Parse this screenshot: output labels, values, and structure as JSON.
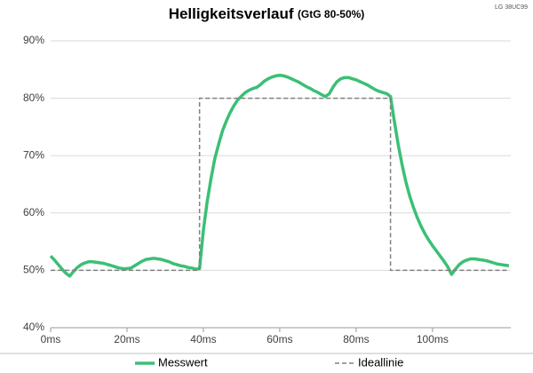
{
  "chart_data": {
    "type": "line",
    "title": "Helligkeitsverlauf",
    "subtitle": "(GtG 80-50%)",
    "annotation": "LG 38UC99",
    "xlim": [
      0,
      120.5
    ],
    "xticks": [
      {
        "value": 0,
        "label": "0ms"
      },
      {
        "value": 20,
        "label": "20ms"
      },
      {
        "value": 40,
        "label": "40ms"
      },
      {
        "value": 60,
        "label": "60ms"
      },
      {
        "value": 80,
        "label": "80ms"
      },
      {
        "value": 100,
        "label": "100ms"
      }
    ],
    "ylim": [
      40,
      90
    ],
    "yticks": [
      {
        "value": 40,
        "label": "40%"
      },
      {
        "value": 50,
        "label": "50%"
      },
      {
        "value": 60,
        "label": "60%"
      },
      {
        "value": 70,
        "label": "70%"
      },
      {
        "value": 80,
        "label": "80%"
      },
      {
        "value": 90,
        "label": "90%"
      }
    ],
    "grid": true,
    "legend": "bottom",
    "series": [
      {
        "name": "Messwert",
        "color": "#3cbf76",
        "dash": false,
        "x": [
          0,
          1,
          2,
          3,
          4,
          5,
          6,
          7,
          8,
          9,
          10,
          11,
          12,
          13,
          14,
          15,
          16,
          17,
          18,
          19,
          20,
          21,
          22,
          23,
          24,
          25,
          26,
          27,
          28,
          29,
          30,
          31,
          32,
          33,
          34,
          35,
          36,
          37,
          38,
          39,
          40,
          41,
          42,
          43,
          44,
          45,
          46,
          47,
          48,
          49,
          50,
          51,
          52,
          53,
          54,
          55,
          56,
          57,
          58,
          59,
          60,
          61,
          62,
          63,
          64,
          65,
          66,
          67,
          68,
          69,
          70,
          71,
          72,
          73,
          74,
          75,
          76,
          77,
          78,
          79,
          80,
          81,
          82,
          83,
          84,
          85,
          86,
          87,
          88,
          89,
          90,
          91,
          92,
          93,
          94,
          95,
          96,
          97,
          98,
          99,
          100,
          101,
          102,
          103,
          104,
          105,
          106,
          107,
          108,
          109,
          110,
          111,
          112,
          113,
          114,
          115,
          116,
          117,
          118,
          119,
          120
        ],
        "values": [
          52.5,
          51.8,
          51,
          50.2,
          49.5,
          49,
          49.8,
          50.5,
          51,
          51.3,
          51.5,
          51.5,
          51.4,
          51.3,
          51.2,
          51,
          50.8,
          50.6,
          50.4,
          50.3,
          50.3,
          50.4,
          50.8,
          51.2,
          51.6,
          51.9,
          52,
          52.1,
          52,
          51.9,
          51.7,
          51.5,
          51.2,
          51,
          50.8,
          50.7,
          50.5,
          50.4,
          50.2,
          50.3,
          57,
          62,
          66,
          69.5,
          72,
          74.3,
          76,
          77.5,
          78.7,
          79.7,
          80.4,
          81,
          81.4,
          81.7,
          81.9,
          82.4,
          83,
          83.4,
          83.7,
          83.9,
          84,
          83.9,
          83.7,
          83.4,
          83.1,
          82.8,
          82.4,
          82,
          81.7,
          81.3,
          81,
          80.6,
          80.3,
          80.8,
          82,
          82.9,
          83.4,
          83.6,
          83.6,
          83.4,
          83.2,
          82.9,
          82.6,
          82.3,
          81.9,
          81.5,
          81.2,
          81,
          80.8,
          80.3,
          76,
          72,
          68.5,
          65.5,
          63,
          61,
          59.2,
          57.7,
          56.4,
          55.3,
          54.3,
          53.4,
          52.5,
          51.6,
          50.6,
          49.3,
          50.2,
          51,
          51.5,
          51.8,
          52,
          52,
          51.9,
          51.8,
          51.7,
          51.5,
          51.3,
          51.1,
          51,
          50.9,
          50.8
        ]
      },
      {
        "name": "Ideallinie",
        "color": "#808080",
        "dash": true,
        "x": [
          0,
          39,
          39,
          89,
          89,
          120
        ],
        "values": [
          50,
          50,
          80,
          80,
          50,
          50
        ]
      }
    ]
  }
}
